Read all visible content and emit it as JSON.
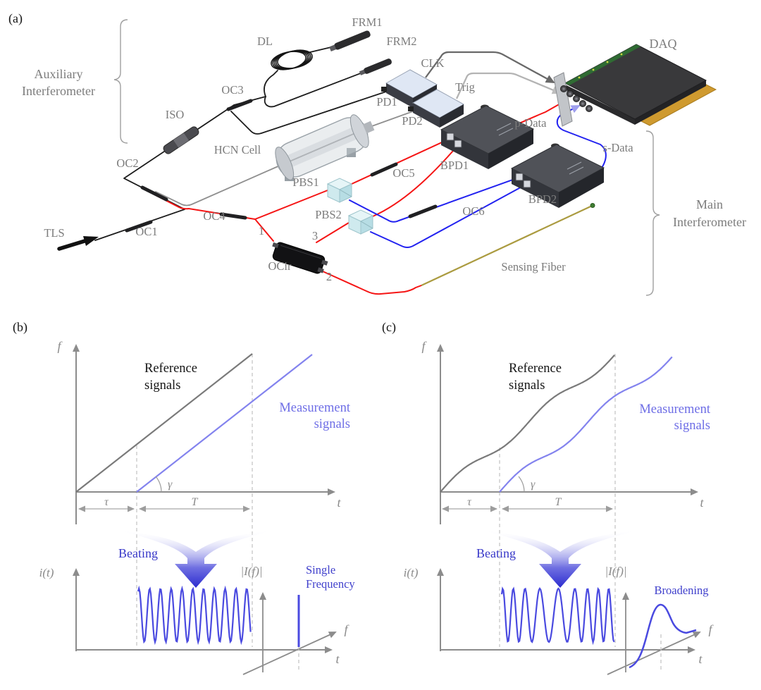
{
  "figure": {
    "colors": {
      "fiber_red": "#f51515",
      "fiber_blue": "#2222f0",
      "fiber_gray": "#8f8f8f",
      "fiber_black": "#1c1c1c",
      "sensing_fiber": "#ab9b40",
      "reference_gray": "#7a7a7a",
      "measurement_blue": "#8383ee",
      "beat_blue": "#4a4ae0",
      "annotation_blue": "#3c3cc8",
      "label_gray": "#7c7c7c"
    },
    "panel_a": {
      "tag": "(a)",
      "auxiliary_bracket": {
        "line1": "Auxiliary",
        "line2": "Interferometer"
      },
      "main_bracket": {
        "line1": "Main",
        "line2": "Interferometer"
      },
      "components": {
        "tls": "TLS",
        "oc1": "OC1",
        "oc2": "OC2",
        "oc3": "OC3",
        "oc4": "OC4",
        "oc5": "OC5",
        "oc6": "OC6",
        "iso": "ISO",
        "dl": "DL",
        "frm1": "FRM1",
        "frm2": "FRM2",
        "pd1": "PD1",
        "pd2": "PD2",
        "hcn_cell": "HCN Cell",
        "pbs1": "PBS1",
        "pbs2": "PBS2",
        "ocir": "OCir",
        "bpd1": "BPD1",
        "bpd2": "BPD2",
        "daq": "DAQ",
        "clk": "CLK",
        "trig": "Trig",
        "p_data": "p-Data",
        "s_data": "s-Data",
        "sensing_fiber": "Sensing Fiber",
        "port1": "1",
        "port2": "2",
        "port3": "3"
      }
    },
    "panel_b": {
      "tag": "(b)",
      "freq_plot": {
        "y_label": "f",
        "x_label": "t",
        "reference_line1": "Reference",
        "reference_line2": "signals",
        "measurement_line1": "Measurement",
        "measurement_line2": "signals",
        "gamma": "γ",
        "tau": "τ",
        "duration": "T"
      },
      "beating": "Beating",
      "beat_plot": {
        "y_label": "i(t)",
        "x_label": "t"
      },
      "spectrum": {
        "y_label": "|I(f)|",
        "f_label": "f",
        "annotation_line1": "Single",
        "annotation_line2": "Frequency"
      }
    },
    "panel_c": {
      "tag": "(c)",
      "freq_plot": {
        "y_label": "f",
        "x_label": "t",
        "reference_line1": "Reference",
        "reference_line2": "signals",
        "measurement_line1": "Measurement",
        "measurement_line2": "signals",
        "gamma": "γ",
        "tau": "τ",
        "duration": "T"
      },
      "beating": "Beating",
      "beat_plot": {
        "y_label": "i(t)",
        "x_label": "t"
      },
      "spectrum": {
        "y_label": "|I(f)|",
        "f_label": "f",
        "annotation": "Broadening"
      }
    }
  }
}
